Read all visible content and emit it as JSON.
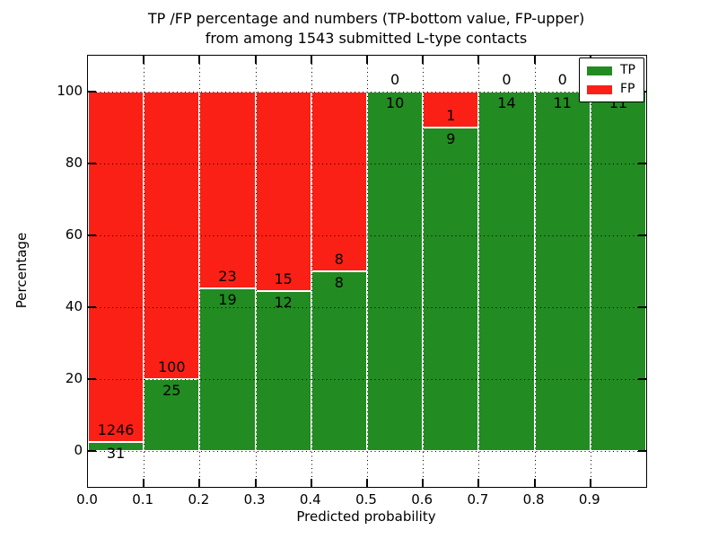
{
  "chart_data": {
    "type": "bar",
    "subtype": "stacked-percentage",
    "title_line1": "TP /FP percentage and numbers (TP-bottom value, FP-upper)",
    "title_line2": "from among 1543 submitted L-type contacts",
    "xlabel": "Predicted probability",
    "ylabel": "Percentage",
    "xlim": [
      0.0,
      1.0
    ],
    "ylim": [
      -10,
      110
    ],
    "x_tick_labels": [
      "0.0",
      "0.1",
      "0.2",
      "0.3",
      "0.4",
      "0.5",
      "0.6",
      "0.7",
      "0.8",
      "0.9"
    ],
    "y_tick_values": [
      0,
      20,
      40,
      60,
      80,
      100
    ],
    "grid": "dotted black, drawn above bars",
    "legend_position": "upper right",
    "categories": [
      "0.0-0.1",
      "0.1-0.2",
      "0.2-0.3",
      "0.3-0.4",
      "0.4-0.5",
      "0.5-0.6",
      "0.6-0.7",
      "0.7-0.8",
      "0.8-0.9",
      "0.9-1.0"
    ],
    "series": [
      {
        "name": "TP",
        "color": "#228B22",
        "values": [
          31,
          25,
          19,
          12,
          8,
          10,
          9,
          14,
          11,
          11
        ]
      },
      {
        "name": "FP",
        "color": "#FB2015",
        "values": [
          1246,
          100,
          23,
          15,
          8,
          0,
          1,
          0,
          0,
          0
        ]
      }
    ],
    "tp_percent_of_bin": [
      2.4,
      20.0,
      45.2,
      44.4,
      50.0,
      100.0,
      90.0,
      100.0,
      100.0,
      100.0
    ],
    "colors": {
      "tp": "#228B22",
      "fp": "#FB2015",
      "grid": "#000000",
      "bar_edge": "#ffffff",
      "background": "#ffffff",
      "text": "#000000"
    }
  }
}
